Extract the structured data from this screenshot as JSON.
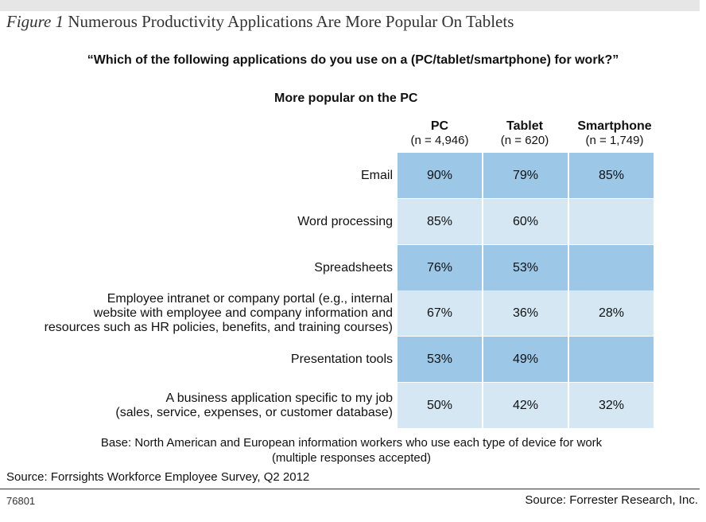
{
  "figure": {
    "label": "Figure 1",
    "title": "Numerous Productivity Applications Are More Popular On Tablets"
  },
  "question": "“Which of the following applications do you use on a (PC/tablet/smartphone) for work?”",
  "subheading": "More popular on the PC",
  "columns": [
    {
      "name": "PC",
      "n": "(n = 4,946)"
    },
    {
      "name": "Tablet",
      "n": "(n = 620)"
    },
    {
      "name": "Smartphone",
      "n": "(n = 1,749)"
    }
  ],
  "rows": [
    {
      "label": [
        "Email"
      ],
      "values": [
        "90%",
        "79%",
        "85%"
      ]
    },
    {
      "label": [
        "Word processing"
      ],
      "values": [
        "85%",
        "60%",
        ""
      ]
    },
    {
      "label": [
        "Spreadsheets"
      ],
      "values": [
        "76%",
        "53%",
        ""
      ]
    },
    {
      "label": [
        "Employee intranet or company portal (e.g., internal",
        "website with employee and company information and",
        "resources such as HR policies, benefits, and training courses)"
      ],
      "values": [
        "67%",
        "36%",
        "28%"
      ]
    },
    {
      "label": [
        "Presentation tools"
      ],
      "values": [
        "53%",
        "49%",
        ""
      ]
    },
    {
      "label": [
        "A business application specific to my job",
        "(sales, service, expenses, or customer database)"
      ],
      "values": [
        "50%",
        "42%",
        "32%"
      ]
    }
  ],
  "colors": {
    "dark": "#9dc7e6",
    "light": "#d4e7f3"
  },
  "base": [
    "Base: North American and European information workers who use each type of device for work",
    "(multiple responses accepted)"
  ],
  "source": "Source: Forrsights Workforce Employee Survey, Q2 2012",
  "figure_id": "76801",
  "publisher": "Source: Forrester Research, Inc.",
  "chart_data": {
    "type": "table",
    "title": "Numerous Productivity Applications Are More Popular On Tablets",
    "categories": [
      "Email",
      "Word processing",
      "Spreadsheets",
      "Employee intranet or company portal (e.g., internal website with employee and company information and resources such as HR policies, benefits, and training courses)",
      "Presentation tools",
      "A business application specific to my job (sales, service, expenses, or customer database)"
    ],
    "series": [
      {
        "name": "PC",
        "values": [
          90,
          85,
          76,
          67,
          53,
          50
        ]
      },
      {
        "name": "Tablet",
        "values": [
          79,
          60,
          53,
          36,
          49,
          42
        ]
      },
      {
        "name": "Smartphone",
        "values": [
          85,
          null,
          null,
          28,
          null,
          32
        ]
      }
    ]
  }
}
